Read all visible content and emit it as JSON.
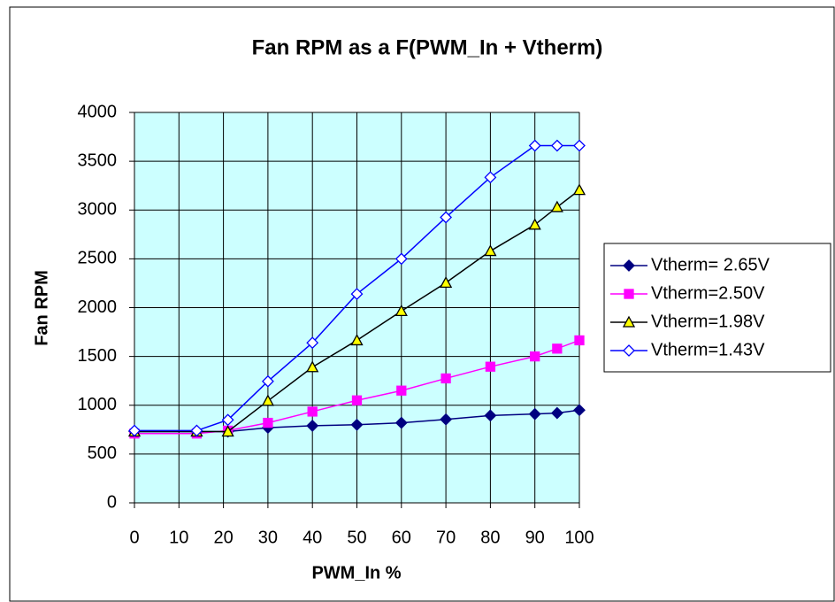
{
  "chart_data": {
    "type": "line",
    "title": "Fan RPM as a F(PWM_In + Vtherm)",
    "x_label": "PWM_In %",
    "y_label": "Fan RPM",
    "x": [
      0,
      14,
      21,
      30,
      40,
      50,
      60,
      70,
      80,
      90,
      95,
      100
    ],
    "xlim": [
      0,
      100
    ],
    "xticks": [
      0,
      10,
      20,
      30,
      40,
      50,
      60,
      70,
      80,
      90,
      100
    ],
    "ylim": [
      0,
      4000
    ],
    "yticks": [
      0,
      500,
      1000,
      1500,
      2000,
      2500,
      3000,
      3500,
      4000
    ],
    "grid": true,
    "plot_background": "#ccffff",
    "legend": "right",
    "series": [
      {
        "name": "Vtherm= 2.65V",
        "color": "#000080",
        "marker": "diamond",
        "marker_fill": "#000080",
        "values": [
          730,
          730,
          730,
          770,
          790,
          800,
          820,
          855,
          895,
          910,
          920,
          950
        ]
      },
      {
        "name": "Vtherm=2.50V",
        "color": "#ff00ff",
        "marker": "square",
        "marker_fill": "#ff00ff",
        "values": [
          710,
          710,
          740,
          820,
          935,
          1050,
          1150,
          1275,
          1395,
          1500,
          1580,
          1665
        ]
      },
      {
        "name": "Vtherm=1.98V",
        "color": "#000000",
        "marker": "triangle",
        "marker_fill": "#ffff00",
        "values": [
          730,
          730,
          730,
          1045,
          1390,
          1665,
          1965,
          2255,
          2580,
          2850,
          3030,
          3205
        ]
      },
      {
        "name": "Vtherm=1.43V",
        "color": "#0000ff",
        "marker": "diamond",
        "marker_fill": "#ffffff",
        "values": [
          740,
          740,
          850,
          1245,
          1640,
          2140,
          2500,
          2925,
          3335,
          3660,
          3660,
          3660
        ]
      }
    ]
  }
}
